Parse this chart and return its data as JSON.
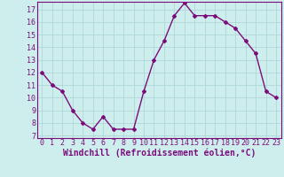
{
  "x": [
    0,
    1,
    2,
    3,
    4,
    5,
    6,
    7,
    8,
    9,
    10,
    11,
    12,
    13,
    14,
    15,
    16,
    17,
    18,
    19,
    20,
    21,
    22,
    23
  ],
  "y": [
    12,
    11,
    10.5,
    9,
    8,
    7.5,
    8.5,
    7.5,
    7.5,
    7.5,
    10.5,
    13,
    14.5,
    16.5,
    17.5,
    16.5,
    16.5,
    16.5,
    16,
    15.5,
    14.5,
    13.5,
    10.5,
    10
  ],
  "line_color": "#7b0d7b",
  "marker": "D",
  "marker_size": 2.0,
  "bg_color": "#ceeeed",
  "xlabel": "Windchill (Refroidissement éolien,°C)",
  "xlim": [
    -0.5,
    23.5
  ],
  "ylim_min": 6.8,
  "ylim_max": 17.6,
  "yticks": [
    7,
    8,
    9,
    10,
    11,
    12,
    13,
    14,
    15,
    16,
    17
  ],
  "xticks": [
    0,
    1,
    2,
    3,
    4,
    5,
    6,
    7,
    8,
    9,
    10,
    11,
    12,
    13,
    14,
    15,
    16,
    17,
    18,
    19,
    20,
    21,
    22,
    23
  ],
  "grid_color": "#b0d8d8",
  "tick_label_fontsize": 6.0,
  "xlabel_fontsize": 7.0,
  "line_width": 1.0,
  "axes_color": "#7b0d7b",
  "spine_color": "#7b0d7b"
}
